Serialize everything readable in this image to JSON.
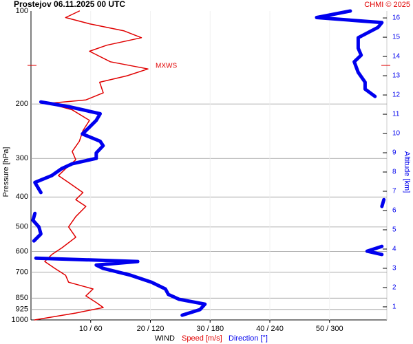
{
  "chart_data": {
    "type": "profile",
    "title": "Prostejov    06.11.2025 00 UTC",
    "credit": "CHMI © 2025",
    "ylabel": "Pressure [hPa]",
    "y2label": "Altitude [km]",
    "xlabel": "WIND",
    "ylog": true,
    "ylim": [
      100,
      1000
    ],
    "yticks": [
      100,
      200,
      300,
      400,
      500,
      600,
      700,
      850,
      925,
      1000
    ],
    "y2lim": [
      0.32,
      16.36
    ],
    "y2ticks": [
      1,
      2,
      3,
      4,
      5,
      6,
      7,
      8,
      9,
      10,
      11,
      12,
      13,
      14,
      15,
      16
    ],
    "xlim": [
      0,
      59.6
    ],
    "x2lim": [
      0,
      360
    ],
    "xticks": [
      {
        "value": 10,
        "label": "10 / 60"
      },
      {
        "value": 20,
        "label": "20 / 120"
      },
      {
        "value": 30,
        "label": "30 / 180"
      },
      {
        "value": 40,
        "label": "40 / 240"
      },
      {
        "value": 50,
        "label": "50 / 300"
      }
    ],
    "grid": true,
    "annotation": {
      "text": "MXWS",
      "pressure": 150
    },
    "series": [
      {
        "name": "Speed [m/s]",
        "color": "#e00000",
        "pressure": [
          1000,
          950,
          912,
          880,
          836,
          794,
          755,
          717,
          681,
          647,
          614,
          584,
          540,
          500,
          463,
          429,
          408,
          387,
          359,
          341,
          324,
          303,
          285,
          264,
          244,
          226,
          209,
          199,
          194,
          184,
          170,
          162,
          154,
          146,
          135,
          129,
          122,
          116,
          110,
          105,
          100
        ],
        "values": [
          0.6,
          7.5,
          12.1,
          11,
          9.2,
          10.4,
          6.3,
          5.8,
          4,
          2.3,
          3.5,
          5.2,
          7.5,
          6.3,
          7.5,
          9.2,
          7.5,
          8.7,
          6.3,
          4.6,
          5.8,
          7.5,
          6.9,
          8.1,
          8.7,
          9.8,
          6.9,
          2.9,
          9.2,
          12.1,
          11.5,
          16.1,
          19.6,
          13.3,
          9.8,
          12.7,
          18.5,
          15.6,
          9.8,
          5.8,
          8.1
        ]
      },
      {
        "name": "Direction [°]",
        "color": "#0000ee",
        "axis": "x2",
        "pressure": [
          965,
          926,
          889,
          858,
          827,
          794,
          755,
          717,
          681,
          664,
          647,
          631,
          614,
          599,
          578,
          555,
          527,
          500,
          476,
          452,
          429,
          408,
          387,
          359,
          341,
          324,
          312,
          300,
          288,
          273,
          264,
          250,
          238,
          226,
          215,
          204,
          197,
          189,
          179,
          170,
          158,
          146,
          139,
          132,
          122,
          113,
          109,
          105,
          100
        ],
        "values": [
          153,
          171,
          176,
          150,
          139,
          136,
          122,
          101,
          73,
          66,
          108,
          5,
          355,
          340,
          355,
          3,
          10,
          8,
          2,
          4,
          355,
          357,
          10,
          4,
          21,
          31,
          42,
          66,
          66,
          73,
          70,
          52,
          59,
          66,
          70,
          38,
          10,
          348,
          338,
          338,
          331,
          327,
          334,
          331,
          331,
          351,
          355,
          289,
          323
        ]
      }
    ]
  }
}
